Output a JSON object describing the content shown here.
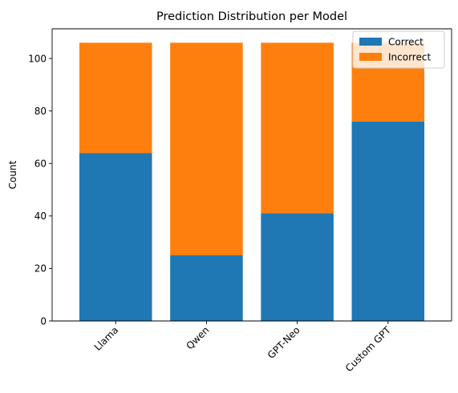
{
  "chart_data": {
    "type": "bar",
    "stacked": true,
    "title": "Prediction Distribution per Model",
    "xlabel": "",
    "ylabel": "Count",
    "categories": [
      "Llama",
      "Qwen",
      "GPT-Neo",
      "Custom GPT"
    ],
    "series": [
      {
        "name": "Correct",
        "values": [
          64,
          25,
          41,
          76
        ],
        "color": "#1f77b4"
      },
      {
        "name": "Incorrect",
        "values": [
          42,
          81,
          65,
          30
        ],
        "color": "#ff7f0e"
      }
    ],
    "ylim": [
      0,
      111.3
    ],
    "yticks": [
      "0",
      "20",
      "40",
      "60",
      "80",
      "100"
    ],
    "x_tick_rotation": 45,
    "grid": false,
    "legend_position": "top-right"
  }
}
